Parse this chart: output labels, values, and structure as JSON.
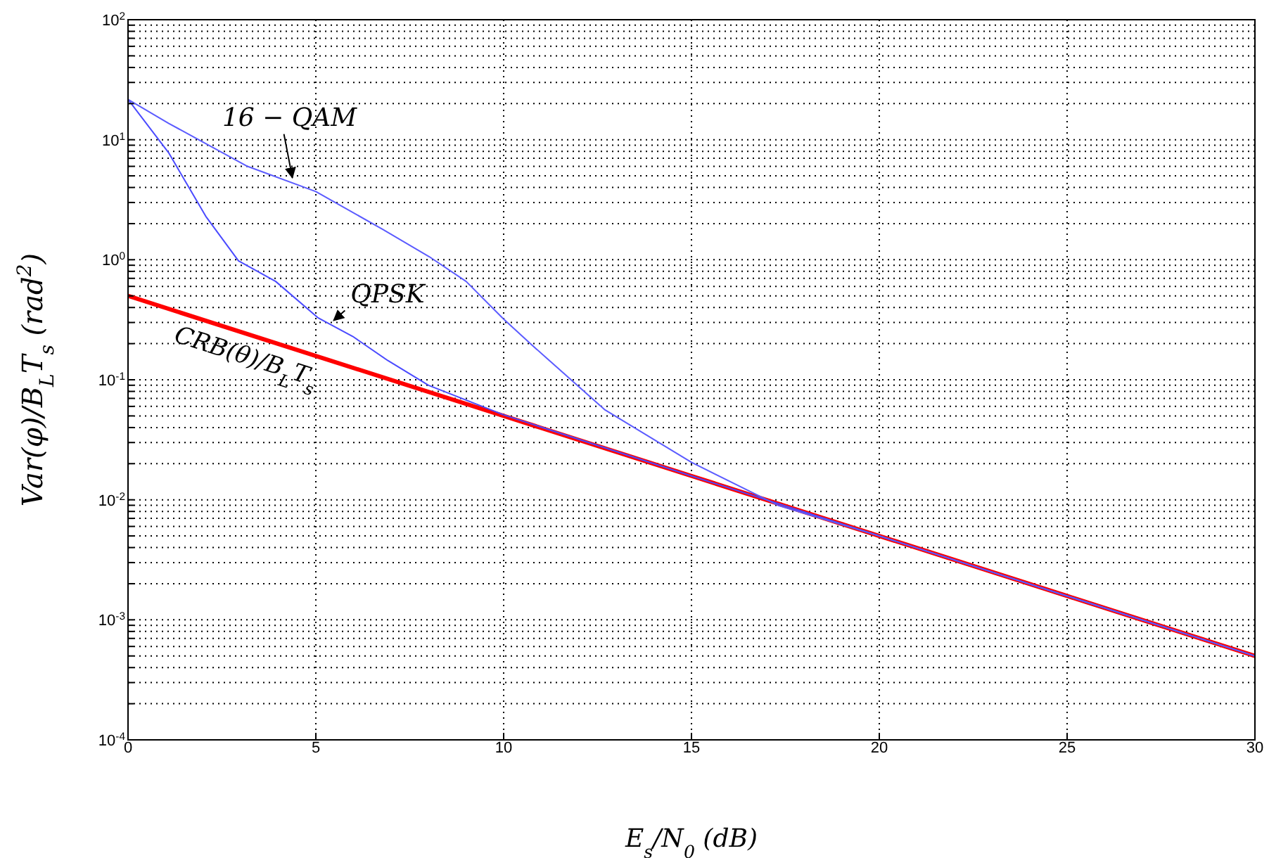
{
  "chart_data": {
    "type": "line",
    "xlabel": "E$_{s}$/N$_{0}$ (dB)",
    "ylabel": "Var(φ)/B$_{L}$T$_{s}$ (rad$^{2}$)",
    "log": "y",
    "grid": true,
    "xlim": [
      0,
      30
    ],
    "xticks": [
      0,
      5,
      10,
      15,
      20,
      25,
      30
    ],
    "ylim": [
      0.0001,
      100
    ],
    "yticks": [
      {
        "value": 0.0001,
        "label": "10$^{-4}$"
      },
      {
        "value": 0.0002,
        "label": null
      },
      {
        "value": 0.0003,
        "label": null
      },
      {
        "value": 0.0004,
        "label": null
      },
      {
        "value": 0.0005,
        "label": null
      },
      {
        "value": 0.0006,
        "label": null
      },
      {
        "value": 0.0007,
        "label": null
      },
      {
        "value": 0.0008,
        "label": null
      },
      {
        "value": 0.0009,
        "label": null
      },
      {
        "value": 0.001,
        "label": "10$^{-3}$"
      },
      {
        "value": 0.002,
        "label": null
      },
      {
        "value": 0.003,
        "label": null
      },
      {
        "value": 0.004,
        "label": null
      },
      {
        "value": 0.005,
        "label": null
      },
      {
        "value": 0.006,
        "label": null
      },
      {
        "value": 0.007,
        "label": null
      },
      {
        "value": 0.008,
        "label": null
      },
      {
        "value": 0.009,
        "label": null
      },
      {
        "value": 0.01,
        "label": "10$^{-2}$"
      },
      {
        "value": 0.02,
        "label": null
      },
      {
        "value": 0.03,
        "label": null
      },
      {
        "value": 0.04,
        "label": null
      },
      {
        "value": 0.05,
        "label": null
      },
      {
        "value": 0.06,
        "label": null
      },
      {
        "value": 0.07,
        "label": null
      },
      {
        "value": 0.08,
        "label": null
      },
      {
        "value": 0.09,
        "label": null
      },
      {
        "value": 0.1,
        "label": "10$^{-1}$"
      },
      {
        "value": 0.2,
        "label": null
      },
      {
        "value": 0.3,
        "label": null
      },
      {
        "value": 0.4,
        "label": null
      },
      {
        "value": 0.5,
        "label": null
      },
      {
        "value": 0.6,
        "label": null
      },
      {
        "value": 0.7,
        "label": null
      },
      {
        "value": 0.8,
        "label": null
      },
      {
        "value": 0.9,
        "label": null
      },
      {
        "value": 1,
        "label": "10$^{0}$"
      },
      {
        "value": 2,
        "label": null
      },
      {
        "value": 3,
        "label": null
      },
      {
        "value": 4,
        "label": null
      },
      {
        "value": 5,
        "label": null
      },
      {
        "value": 6,
        "label": null
      },
      {
        "value": 7,
        "label": null
      },
      {
        "value": 8,
        "label": null
      },
      {
        "value": 9,
        "label": null
      },
      {
        "value": 10,
        "label": "10$^{1}$"
      },
      {
        "value": 20,
        "label": null
      },
      {
        "value": 30,
        "label": null
      },
      {
        "value": 40,
        "label": null
      },
      {
        "value": 50,
        "label": null
      },
      {
        "value": 60,
        "label": null
      },
      {
        "value": 70,
        "label": null
      },
      {
        "value": 80,
        "label": null
      },
      {
        "value": 90,
        "label": null
      },
      {
        "value": 100,
        "label": "10$^{2}$"
      }
    ],
    "series": [
      {
        "name": "16 − QAM",
        "color": "#5b5bff",
        "x": [
          0,
          1.08,
          3.18,
          5,
          6.78,
          8.02,
          9,
          10,
          10.75,
          12.7,
          15,
          17.3,
          20,
          25,
          30
        ],
        "values": [
          21.7,
          13.7,
          6.0,
          3.7,
          1.79,
          1.06,
          0.66,
          0.32,
          0.195,
          0.056,
          0.0205,
          0.009,
          0.005,
          0.00158,
          0.0005
        ]
      },
      {
        "name": "QPSK",
        "color": "#4a4aff",
        "x": [
          0,
          1.08,
          2.07,
          2.94,
          3.93,
          5.05,
          5.98,
          6.91,
          8,
          10,
          15,
          20,
          25,
          30
        ],
        "values": [
          21.7,
          7.8,
          2.3,
          0.98,
          0.66,
          0.33,
          0.23,
          0.145,
          0.09,
          0.051,
          0.0158,
          0.005,
          0.00158,
          0.0005
        ]
      },
      {
        "name": "CRB(θ)/B$_{L}$T$_{s}$",
        "color": "#ff0000",
        "x": [
          0,
          5,
          10,
          15,
          20,
          25,
          30
        ],
        "values": [
          0.5,
          0.158,
          0.05,
          0.0158,
          0.005,
          0.00158,
          0.0005
        ]
      }
    ]
  }
}
